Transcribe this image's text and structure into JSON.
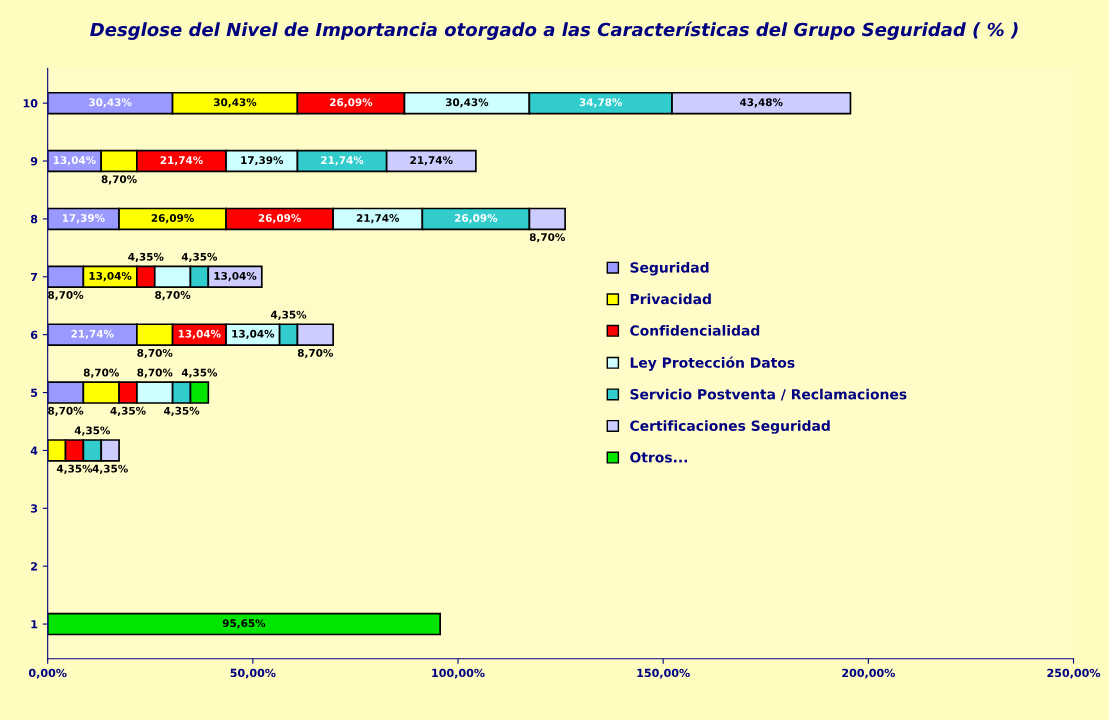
{
  "chart_data": {
    "type": "bar",
    "orientation": "horizontal",
    "stacked": true,
    "title": "Desglose del Nivel de Importancia otorgado a las Características del Grupo Seguridad ( % )",
    "categories": [
      "10",
      "9",
      "8",
      "7",
      "6",
      "5",
      "4",
      "3",
      "2",
      "1"
    ],
    "xlim": [
      0,
      250
    ],
    "xticks": [
      {
        "value": 0,
        "label": "0,00%"
      },
      {
        "value": 50,
        "label": "50,00%"
      },
      {
        "value": 100,
        "label": "100,00%"
      },
      {
        "value": 150,
        "label": "150,00%"
      },
      {
        "value": 200,
        "label": "200,00%"
      },
      {
        "value": 250,
        "label": "250,00%"
      }
    ],
    "grid": false,
    "legend": "right",
    "series": [
      {
        "name": "Seguridad",
        "color": "#9999ff",
        "values": [
          30.43,
          13.04,
          17.39,
          8.7,
          21.74,
          8.7,
          null,
          null,
          null,
          null
        ],
        "value_labels": [
          "30,43%",
          "13,04%",
          "17,39%",
          "8,70%",
          "21,74%",
          "8,70%",
          null,
          null,
          null,
          null
        ]
      },
      {
        "name": "Privacidad",
        "color": "#ffff00",
        "values": [
          30.43,
          8.7,
          26.09,
          13.04,
          8.7,
          8.7,
          4.35,
          null,
          null,
          null
        ],
        "value_labels": [
          "30,43%",
          "8,70%",
          "26,09%",
          "13,04%",
          "8,70%",
          "8,70%",
          null,
          null,
          null,
          null
        ]
      },
      {
        "name": "Confidencialidad",
        "color": "#ff0000",
        "values": [
          26.09,
          21.74,
          26.09,
          4.35,
          13.04,
          4.35,
          4.35,
          null,
          null,
          null
        ],
        "value_labels": [
          "26,09%",
          "21,74%",
          "26,09%",
          "4,35%",
          "13,04%",
          "4,35%",
          "4,35%",
          null,
          null,
          null
        ]
      },
      {
        "name": "Ley Protección Datos",
        "color": "#ccffff",
        "values": [
          30.43,
          17.39,
          21.74,
          8.7,
          13.04,
          8.7,
          null,
          null,
          null,
          null
        ],
        "value_labels": [
          "30,43%",
          "17,39%",
          "21,74%",
          "8,70%",
          "13,04%",
          "8,70%",
          null,
          null,
          null,
          null
        ]
      },
      {
        "name": "Servicio Postventa / Reclamaciones",
        "color": "#33cccc",
        "values": [
          34.78,
          21.74,
          26.09,
          4.35,
          4.35,
          4.35,
          4.35,
          null,
          null,
          null
        ],
        "value_labels": [
          "34,78%",
          "21,74%",
          "26,09%",
          "4,35%",
          "4,35%",
          "4,35%",
          "4,35%",
          null,
          null,
          null
        ]
      },
      {
        "name": "Certificaciones Seguridad",
        "color": "#ccccff",
        "values": [
          43.48,
          21.74,
          8.7,
          13.04,
          8.7,
          null,
          4.35,
          null,
          null,
          null
        ],
        "value_labels": [
          "43,48%",
          "21,74%",
          "8,70%",
          "13,04%",
          "8,70%",
          null,
          "4,35%",
          null,
          null,
          null
        ]
      },
      {
        "name": "Otros...",
        "color": "#00e600",
        "values": [
          null,
          null,
          null,
          null,
          null,
          4.35,
          null,
          null,
          null,
          95.65
        ],
        "value_labels": [
          null,
          null,
          null,
          null,
          null,
          "4,35%",
          null,
          null,
          null,
          "95,65%"
        ]
      }
    ]
  }
}
